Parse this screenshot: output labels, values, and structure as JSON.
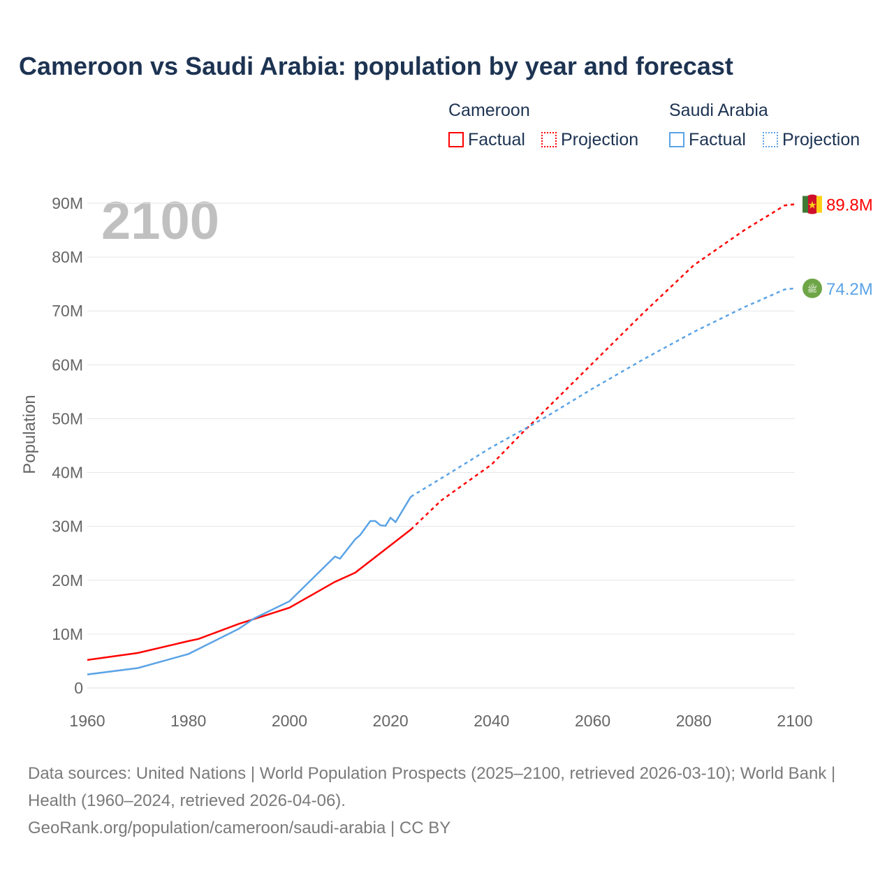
{
  "chart_data": {
    "type": "line",
    "title": "Cameroon vs Saudi Arabia: population by year and forecast",
    "ylabel": "Population",
    "xlabel": "",
    "xlim": [
      1960,
      2100
    ],
    "ylim": [
      0,
      90
    ],
    "xticks": [
      "1960",
      "1980",
      "2000",
      "2020",
      "2040",
      "2060",
      "2080",
      "2100"
    ],
    "yticks": [
      "0",
      "10M",
      "20M",
      "30M",
      "40M",
      "50M",
      "60M",
      "70M",
      "80M",
      "90M"
    ],
    "year_label": "2100",
    "grid": true,
    "legend": {
      "groups": [
        {
          "name": "Cameroon",
          "factual": "Factual",
          "projection": "Projection"
        },
        {
          "name": "Saudi Arabia",
          "factual": "Factual",
          "projection": "Projection"
        }
      ],
      "placement": "top-right"
    },
    "series": [
      {
        "name": "Cameroon",
        "color": "#ff0000",
        "end_label": "89.8M",
        "factual": [
          [
            1960,
            5.2
          ],
          [
            1970,
            6.5
          ],
          [
            1980,
            8.7
          ],
          [
            1982,
            9.1
          ],
          [
            1990,
            11.9
          ],
          [
            2000,
            14.9
          ],
          [
            2009,
            19.7
          ],
          [
            2013,
            21.4
          ],
          [
            2024,
            29.4
          ]
        ],
        "projection": [
          [
            2024,
            29.4
          ],
          [
            2030,
            34.8
          ],
          [
            2040,
            41.5
          ],
          [
            2046,
            47.3
          ],
          [
            2060,
            60.3
          ],
          [
            2070,
            69.6
          ],
          [
            2080,
            78.5
          ],
          [
            2090,
            85
          ],
          [
            2098,
            89.6
          ],
          [
            2100,
            89.8
          ]
        ]
      },
      {
        "name": "Saudi Arabia",
        "color": "#5ba3e6",
        "end_label": "74.2M",
        "factual": [
          [
            1960,
            2.5
          ],
          [
            1970,
            3.7
          ],
          [
            1980,
            6.3
          ],
          [
            1990,
            11
          ],
          [
            1993,
            12.9
          ],
          [
            2000,
            16.1
          ],
          [
            2009,
            24.4
          ],
          [
            2010,
            24
          ],
          [
            2013,
            27.6
          ],
          [
            2014,
            28.4
          ],
          [
            2016,
            31
          ],
          [
            2017,
            31
          ],
          [
            2018,
            30.2
          ],
          [
            2019,
            30.1
          ],
          [
            2020,
            31.6
          ],
          [
            2021,
            30.8
          ],
          [
            2024,
            35.5
          ]
        ],
        "projection": [
          [
            2024,
            35.5
          ],
          [
            2030,
            38.9
          ],
          [
            2040,
            44.7
          ],
          [
            2050,
            49.9
          ],
          [
            2060,
            55.6
          ],
          [
            2070,
            61
          ],
          [
            2080,
            66.1
          ],
          [
            2090,
            70.7
          ],
          [
            2098,
            74
          ],
          [
            2100,
            74.2
          ]
        ]
      }
    ]
  },
  "footer": {
    "sources": "Data sources: United Nations | World Population Prospects (2025–2100, retrieved 2026-03-10); World Bank | Health (1960–2024, retrieved 2026-04-06).",
    "link": "GeoRank.org/population/cameroon/saudi-arabia | CC BY"
  }
}
